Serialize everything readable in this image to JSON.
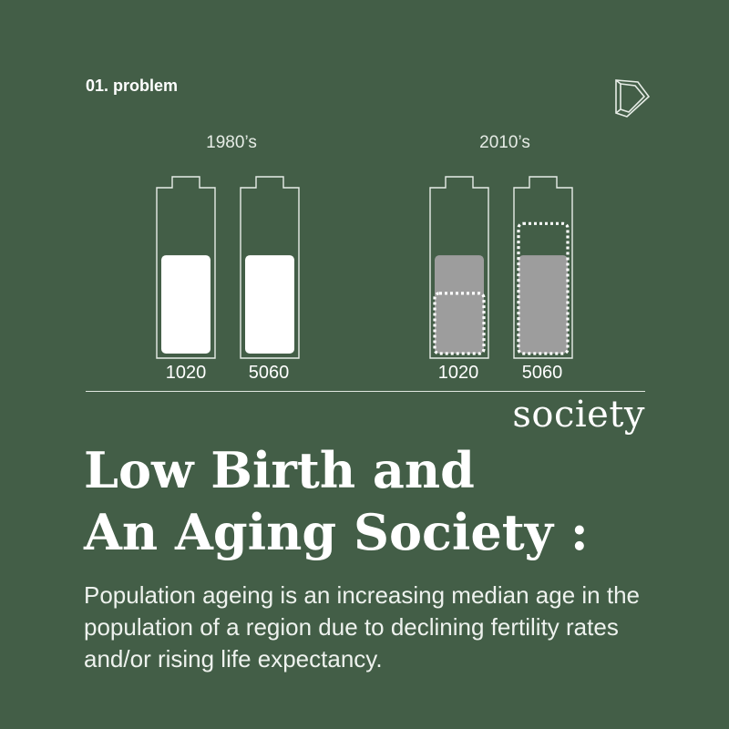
{
  "header": {
    "section_label": "01. problem",
    "logo_icon": "logo-d-icon"
  },
  "chart_data": {
    "type": "diagram",
    "periods": [
      {
        "label": "1980’s",
        "groups": [
          {
            "label": "1020",
            "fill_level": 0.62,
            "style": "solid"
          },
          {
            "label": "5060",
            "fill_level": 0.62,
            "style": "solid"
          }
        ]
      },
      {
        "label": "2010’s",
        "groups": [
          {
            "label": "1020",
            "fill_level": 0.62,
            "outline_level": 0.38,
            "style": "dimmed"
          },
          {
            "label": "5060",
            "fill_level": 0.62,
            "outline_level": 0.82,
            "style": "dimmed"
          }
        ]
      }
    ]
  },
  "category": "society",
  "headline": {
    "line1": "Low Birth and",
    "line2": "An Aging Society :"
  },
  "description": "Population ageing is an increasing median age in the population of a region due to declining fertility rates and/or rising life expectancy.",
  "colors": {
    "background": "#435e47",
    "solid_fill": "#ffffff",
    "dimmed_fill": "#9d9d9d",
    "outline": "#e8ede8"
  }
}
